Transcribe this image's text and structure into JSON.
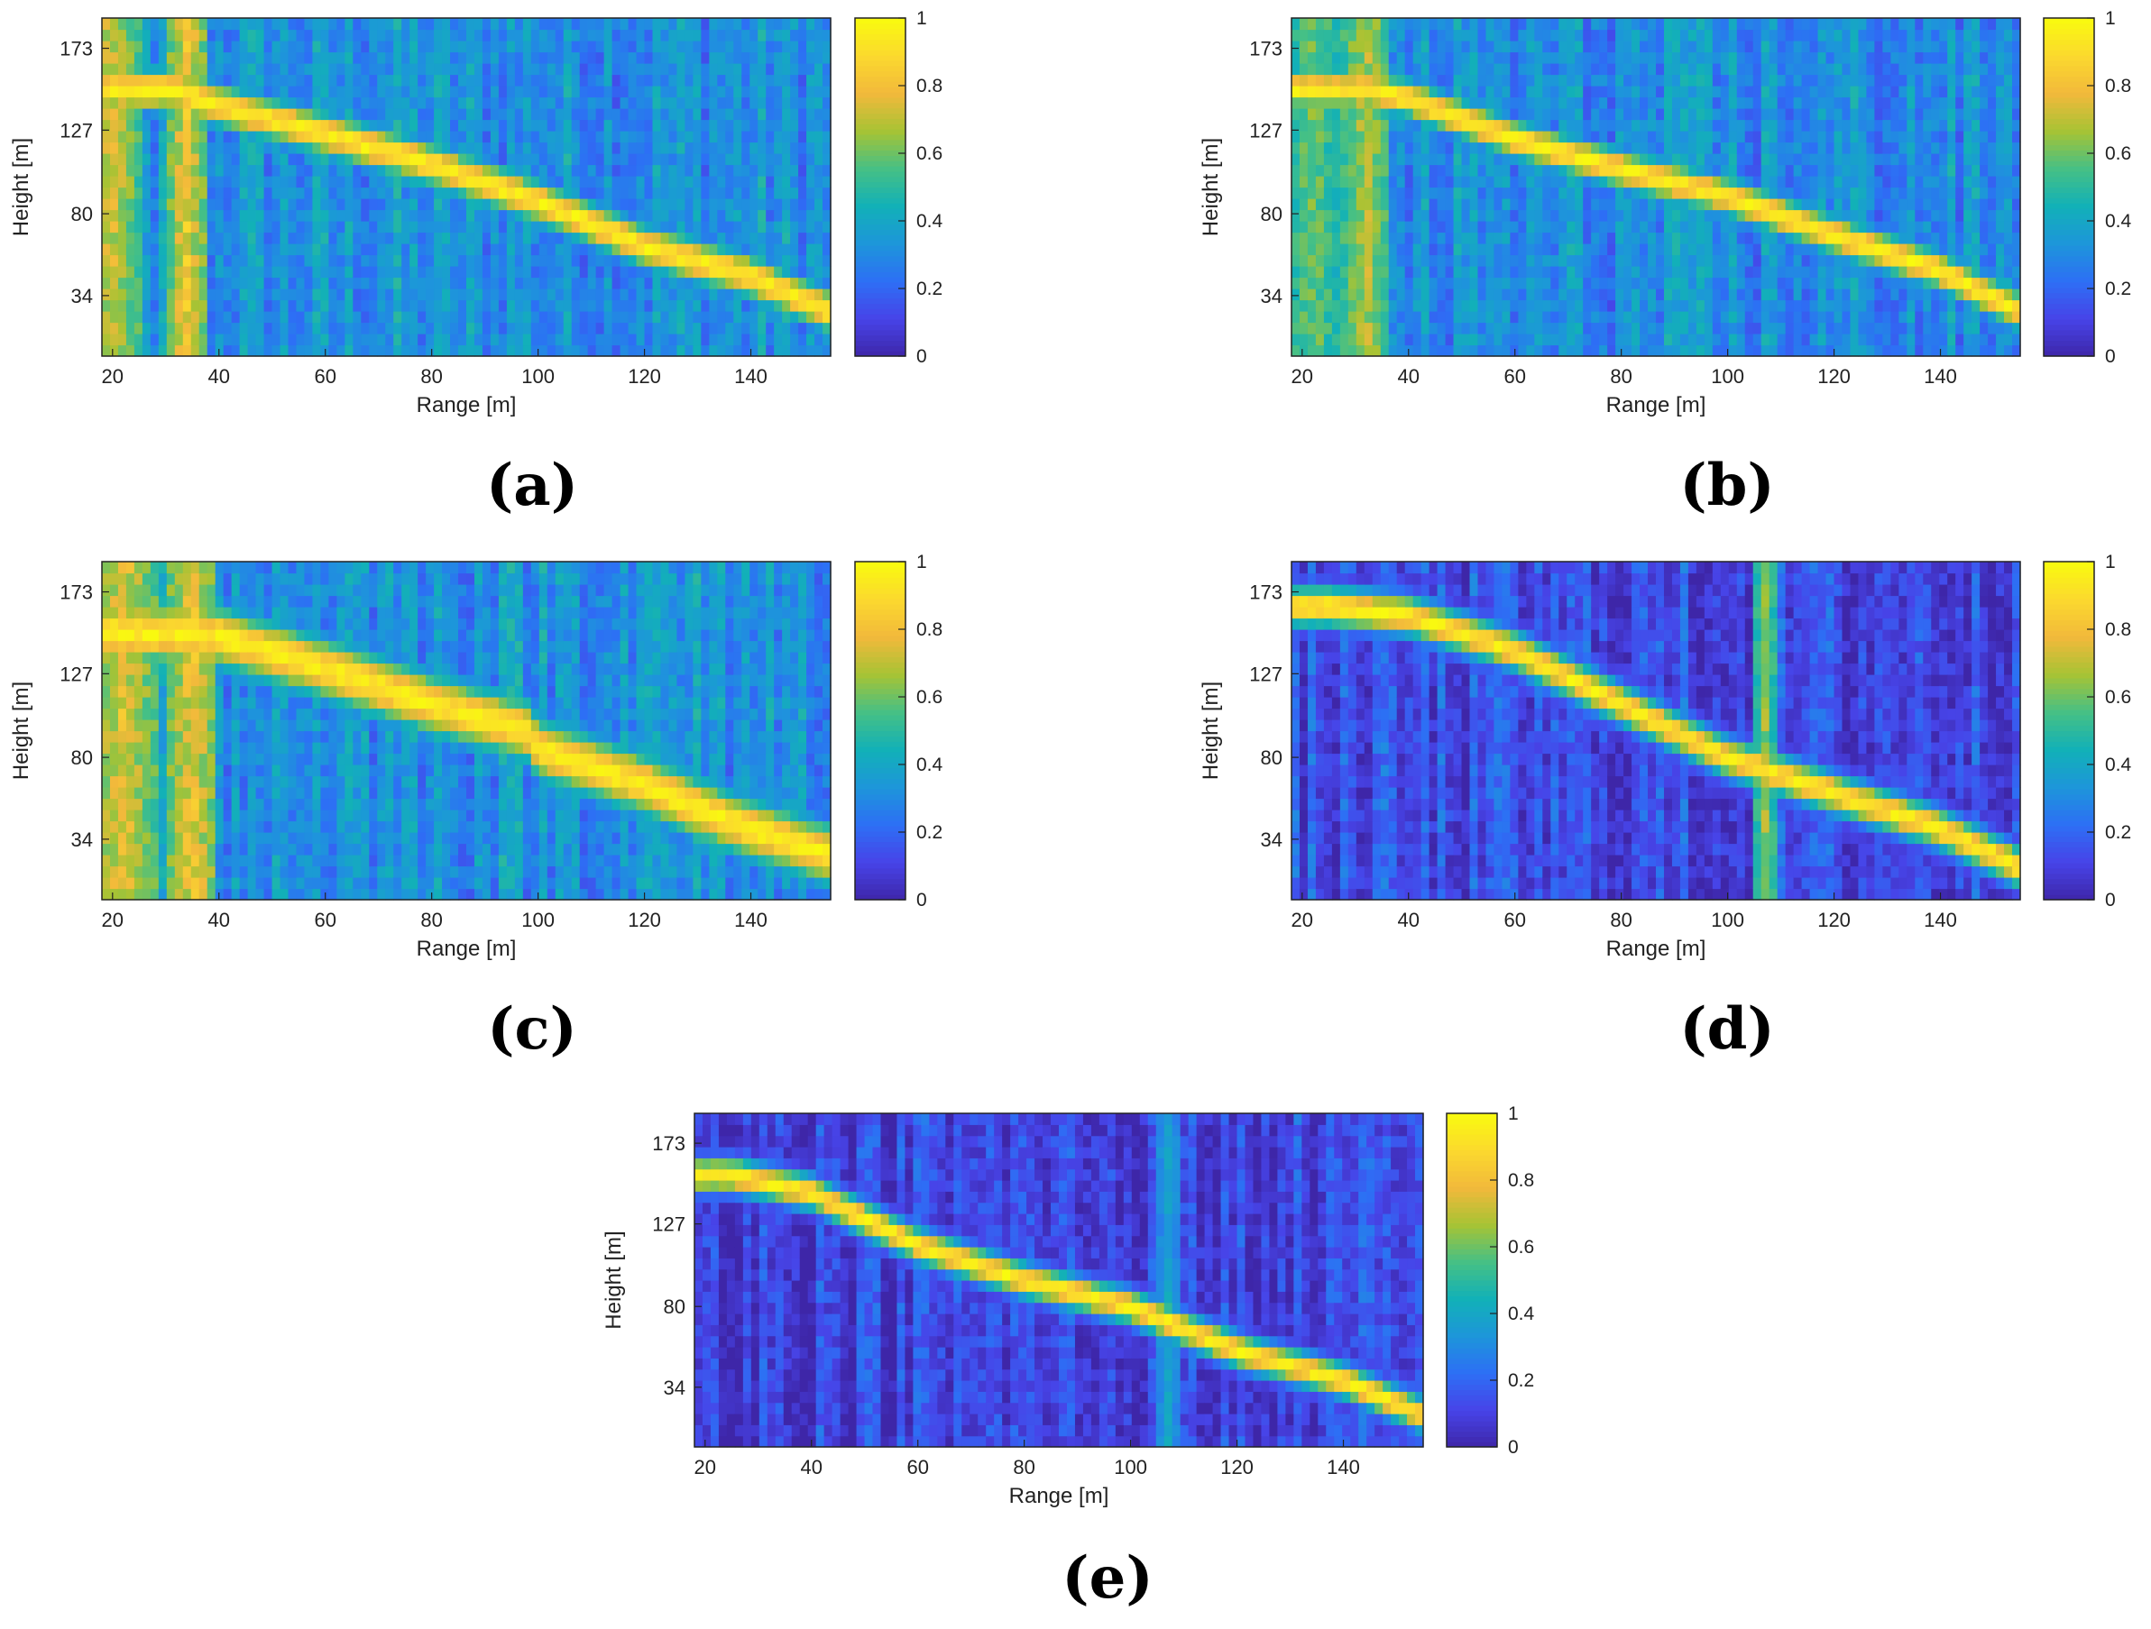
{
  "colors": {
    "colormap": [
      "#3e26a8",
      "#4744e8",
      "#2d6ff5",
      "#1d96da",
      "#12b1b7",
      "#46c085",
      "#a7c334",
      "#f2b93b",
      "#fbd92e",
      "#f9fb0e"
    ],
    "frame": "#222222",
    "background": "#ffffff"
  },
  "chart_data": [
    {
      "type": "heatmap",
      "panel": "(a)",
      "xlabel": "Range [m]",
      "ylabel": "Height [m]",
      "xlim": [
        18,
        155
      ],
      "ylim": [
        0,
        190
      ],
      "xticks": [
        20,
        40,
        60,
        80,
        100,
        120,
        140
      ],
      "yticks": [
        34,
        80,
        127,
        173
      ],
      "colorbar": {
        "range": [
          0,
          1
        ],
        "ticks": [
          0,
          0.2,
          0.4,
          0.6,
          0.8,
          1
        ]
      },
      "ridge": {
        "x": [
          32,
          40,
          60,
          80,
          100,
          120,
          140,
          155
        ],
        "height": [
          150,
          141,
          125,
          108,
          87,
          62,
          45,
          25
        ]
      },
      "noise_level": 0.32,
      "ridge_width": 9,
      "bright_columns": [
        {
          "x": 20,
          "width": 6,
          "value": 0.78
        },
        {
          "x": 34,
          "width": 4,
          "value": 0.85
        }
      ]
    },
    {
      "type": "heatmap",
      "panel": "(b)",
      "xlabel": "Range [m]",
      "ylabel": "Height [m]",
      "xlim": [
        18,
        155
      ],
      "ylim": [
        0,
        190
      ],
      "xticks": [
        20,
        40,
        60,
        80,
        100,
        120,
        140
      ],
      "yticks": [
        34,
        80,
        127,
        173
      ],
      "colorbar": {
        "range": [
          0,
          1
        ],
        "ticks": [
          0,
          0.2,
          0.4,
          0.6,
          0.8,
          1
        ]
      },
      "ridge": {
        "x": [
          32,
          40,
          60,
          80,
          100,
          120,
          140,
          155
        ],
        "height": [
          150,
          145,
          122,
          105,
          90,
          68,
          48,
          25
        ]
      },
      "noise_level": 0.3,
      "ridge_width": 8,
      "bright_columns": [
        {
          "x": 22,
          "width": 6,
          "value": 0.65
        },
        {
          "x": 32,
          "width": 5,
          "value": 0.75
        }
      ]
    },
    {
      "type": "heatmap",
      "panel": "(c)",
      "xlabel": "Range [m]",
      "ylabel": "Height [m]",
      "xlim": [
        18,
        155
      ],
      "ylim": [
        0,
        190
      ],
      "xticks": [
        20,
        40,
        60,
        80,
        100,
        120,
        140
      ],
      "yticks": [
        34,
        80,
        127,
        173
      ],
      "colorbar": {
        "range": [
          0,
          1
        ],
        "ticks": [
          0,
          0.2,
          0.4,
          0.6,
          0.8,
          1
        ]
      },
      "ridge": {
        "x": [
          32,
          40,
          60,
          80,
          98,
          100,
          120,
          135,
          155
        ],
        "height": [
          150,
          148,
          130,
          110,
          95,
          85,
          65,
          45,
          25
        ]
      },
      "noise_level": 0.33,
      "ridge_width": 13,
      "bright_columns": [
        {
          "x": 22,
          "width": 7,
          "value": 0.82
        },
        {
          "x": 35,
          "width": 5,
          "value": 0.85
        }
      ]
    },
    {
      "type": "heatmap",
      "panel": "(d)",
      "xlabel": "Range [m]",
      "ylabel": "Height [m]",
      "xlim": [
        18,
        155
      ],
      "ylim": [
        0,
        190
      ],
      "xticks": [
        20,
        40,
        60,
        80,
        100,
        120,
        140
      ],
      "yticks": [
        34,
        80,
        127,
        173
      ],
      "colorbar": {
        "range": [
          0,
          1
        ],
        "ticks": [
          0,
          0.2,
          0.4,
          0.6,
          0.8,
          1
        ]
      },
      "ridge": {
        "x": [
          25,
          40,
          60,
          80,
          100,
          120,
          140,
          155
        ],
        "height": [
          165,
          160,
          140,
          110,
          80,
          60,
          40,
          18
        ]
      },
      "noise_level": 0.12,
      "ridge_width": 8,
      "bright_columns": [
        {
          "x": 107,
          "width": 2,
          "value": 0.7
        }
      ]
    },
    {
      "type": "heatmap",
      "panel": "(e)",
      "xlabel": "Range [m]",
      "ylabel": "Height [m]",
      "xlim": [
        18,
        155
      ],
      "ylim": [
        0,
        190
      ],
      "xticks": [
        20,
        40,
        60,
        80,
        100,
        120,
        140
      ],
      "yticks": [
        34,
        80,
        127,
        173
      ],
      "colorbar": {
        "range": [
          0,
          1
        ],
        "ticks": [
          0,
          0.2,
          0.4,
          0.6,
          0.8,
          1
        ]
      },
      "ridge": {
        "x": [
          25,
          40,
          60,
          80,
          100,
          120,
          140,
          155
        ],
        "height": [
          155,
          145,
          115,
          95,
          80,
          55,
          38,
          18
        ]
      },
      "noise_level": 0.1,
      "ridge_width": 7,
      "bright_columns": [
        {
          "x": 107,
          "width": 2,
          "value": 0.42
        }
      ]
    }
  ]
}
